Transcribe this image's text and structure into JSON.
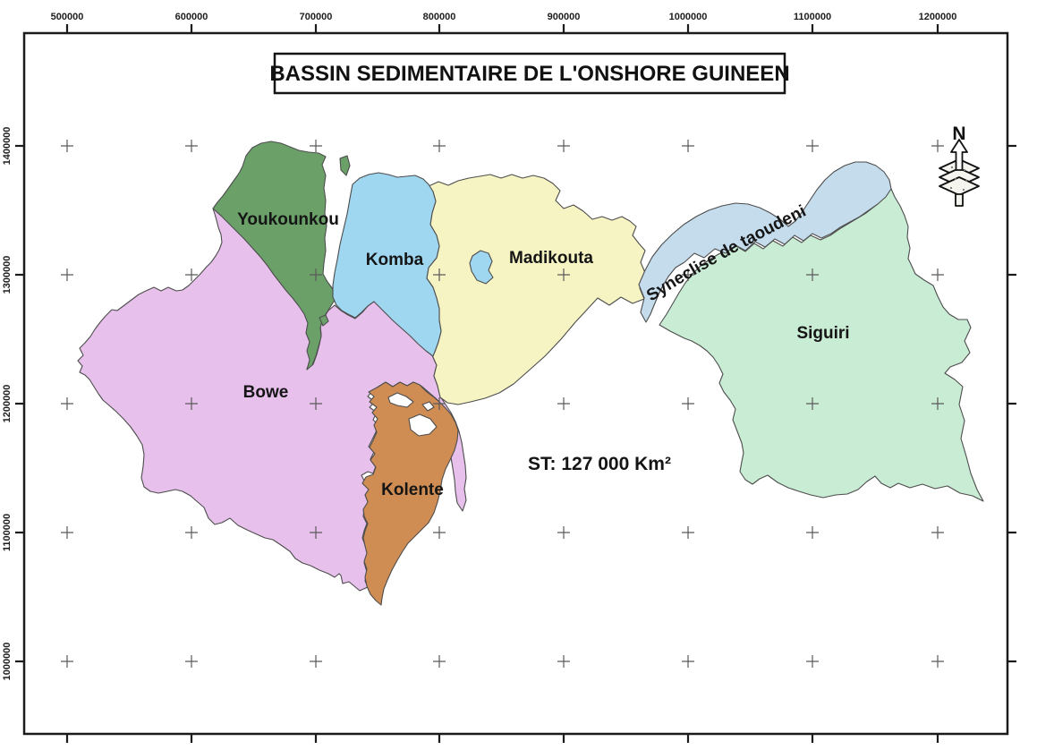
{
  "map": {
    "title": "BASSIN SEDIMENTAIRE DE L'ONSHORE GUINEEN",
    "annotation": "ST: 127 000 Km²",
    "north_label": "N",
    "regions": [
      {
        "key": "bowe",
        "label": "Bowe",
        "color": "#e7c0ec"
      },
      {
        "key": "madikouta",
        "label": "Madikouta",
        "color": "#f6f4c3"
      },
      {
        "key": "kolente",
        "label": "Kolente",
        "color": "#d08d53"
      },
      {
        "key": "youkounkou",
        "label": "Youkounkou",
        "color": "#6ba169"
      },
      {
        "key": "komba",
        "label": "Komba",
        "color": "#9fd6f0"
      },
      {
        "key": "siguiri",
        "label": "Siguiri",
        "color": "#c9ecd4"
      },
      {
        "key": "syneclise",
        "label": "Syneclise de taoudeni",
        "color": "#c4dcec"
      }
    ],
    "axes": {
      "top_labels": [
        "500000",
        "600000",
        "700000",
        "800000",
        "900000",
        "1000000",
        "1100000",
        "1200000"
      ],
      "left_labels": [
        "1400000",
        "1300000",
        "1200000",
        "1100000",
        "1000000"
      ]
    },
    "colors": {
      "border": "#1b1b1b",
      "outline": "#4d4d4d",
      "cross": "#5a5a5a",
      "label": "#151515"
    }
  }
}
